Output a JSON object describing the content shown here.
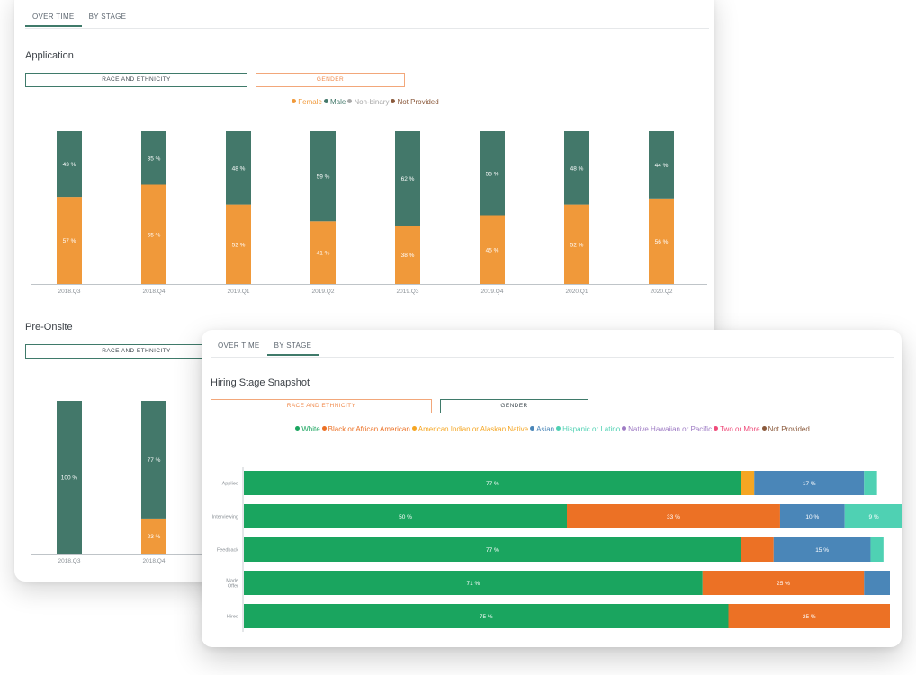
{
  "colors": {
    "female": "#f0993a",
    "male": "#43786a",
    "non_binary": "#a8a8a8",
    "not_provided": "#8b5a3c",
    "white": "#1aa55f",
    "black": "#ec7125",
    "american_indian": "#f5a623",
    "asian": "#4a86b8",
    "hispanic": "#4fd1b3",
    "native_hawaiian": "#9e7bc4",
    "two_or_more": "#ef4b7a",
    "race_not_provided": "#8b5a3c"
  },
  "back_card": {
    "tabs": [
      "OVER TIME",
      "BY STAGE"
    ],
    "application": {
      "title": "Application",
      "filter_race": "RACE AND ETHNICITY",
      "filter_gender": "GENDER",
      "legend": [
        {
          "label": "Female",
          "color": "#f0993a",
          "icon": "dot"
        },
        {
          "label": "Male",
          "color": "#43786a",
          "icon": "dot"
        },
        {
          "label": "Non-binary",
          "color": "#a8a8a8",
          "icon": "dot"
        },
        {
          "label": "Not Provided",
          "color": "#8b5a3c",
          "icon": "dot"
        }
      ]
    },
    "pre_onsite": {
      "title": "Pre-Onsite",
      "filter_race": "RACE AND ETHNICITY"
    }
  },
  "front_card": {
    "tabs": [
      "OVER TIME",
      "BY STAGE"
    ],
    "title": "Hiring Stage Snapshot",
    "filter_race": "RACE AND ETHNICITY",
    "filter_gender": "GENDER",
    "legend": [
      {
        "label": "White",
        "color": "#1aa55f",
        "icon": "dot"
      },
      {
        "label": "Black or African American",
        "color": "#ec7125",
        "icon": "dot"
      },
      {
        "label": "American Indian or Alaskan Native",
        "color": "#f5a623",
        "icon": "dot"
      },
      {
        "label": "Asian",
        "color": "#4a86b8",
        "icon": "dot"
      },
      {
        "label": "Hispanic or Latino",
        "color": "#4fd1b3",
        "icon": "dot"
      },
      {
        "label": "Native Hawaiian or Pacific",
        "color": "#9e7bc4",
        "icon": "dot"
      },
      {
        "label": "Two or More",
        "color": "#ef4b7a",
        "icon": "dot"
      },
      {
        "label": "Not Provided",
        "color": "#8b5a3c",
        "icon": "dot"
      }
    ]
  },
  "chart_data": [
    {
      "type": "bar",
      "stacked": true,
      "title": "Application",
      "categories": [
        "2018.Q3",
        "2018.Q4",
        "2019.Q1",
        "2019.Q2",
        "2019.Q3",
        "2019.Q4",
        "2020.Q1",
        "2020.Q2"
      ],
      "series": [
        {
          "name": "Female",
          "color": "#f0993a",
          "values": [
            57,
            65,
            52,
            41,
            38,
            45,
            52,
            56
          ],
          "labels": [
            "57 %",
            "65 %",
            "52 %",
            "41 %",
            "38 %",
            "45 %",
            "52 %",
            "56 %"
          ]
        },
        {
          "name": "Male",
          "color": "#43786a",
          "values": [
            43,
            35,
            48,
            59,
            62,
            55,
            48,
            44
          ],
          "labels": [
            "43 %",
            "35 %",
            "48 %",
            "59 %",
            "62 %",
            "55 %",
            "48 %",
            "44 %"
          ]
        }
      ],
      "ylim": [
        0,
        100
      ]
    },
    {
      "type": "bar",
      "stacked": true,
      "title": "Pre-Onsite",
      "categories": [
        "2018.Q3",
        "2018.Q4"
      ],
      "series": [
        {
          "name": "Female",
          "color": "#f0993a",
          "values": [
            0,
            23
          ],
          "labels": [
            "",
            "23 %"
          ]
        },
        {
          "name": "Male",
          "color": "#43786a",
          "values": [
            100,
            77
          ],
          "labels": [
            "100 %",
            "77 %"
          ]
        }
      ],
      "ylim": [
        0,
        100
      ]
    },
    {
      "type": "bar",
      "orientation": "horizontal",
      "stacked": true,
      "title": "Hiring Stage Snapshot",
      "categories": [
        "Applied",
        "Interviewing",
        "Feedback",
        "Made Offer",
        "Hired"
      ],
      "series": [
        {
          "name": "White",
          "color": "#1aa55f",
          "values": [
            77,
            50,
            77,
            71,
            75
          ],
          "labels": [
            "77 %",
            "50 %",
            "77 %",
            "71 %",
            "75 %"
          ]
        },
        {
          "name": "Black or African American",
          "color": "#ec7125",
          "values": [
            0,
            33,
            5,
            25,
            25
          ],
          "labels": [
            "",
            "33 %",
            "",
            "25 %",
            "25 %"
          ]
        },
        {
          "name": "American Indian or Alaskan Native",
          "color": "#f5a623",
          "values": [
            2,
            0,
            0,
            0,
            0
          ],
          "labels": [
            "",
            "",
            "",
            "",
            ""
          ]
        },
        {
          "name": "Asian",
          "color": "#4a86b8",
          "values": [
            17,
            10,
            15,
            4,
            0
          ],
          "labels": [
            "17 %",
            "10 %",
            "15 %",
            "",
            ""
          ]
        },
        {
          "name": "Hispanic or Latino",
          "color": "#4fd1b3",
          "values": [
            2,
            9,
            2,
            0,
            0
          ],
          "labels": [
            "",
            "9 %",
            "",
            "",
            ""
          ]
        }
      ],
      "xlim": [
        0,
        100
      ]
    }
  ]
}
